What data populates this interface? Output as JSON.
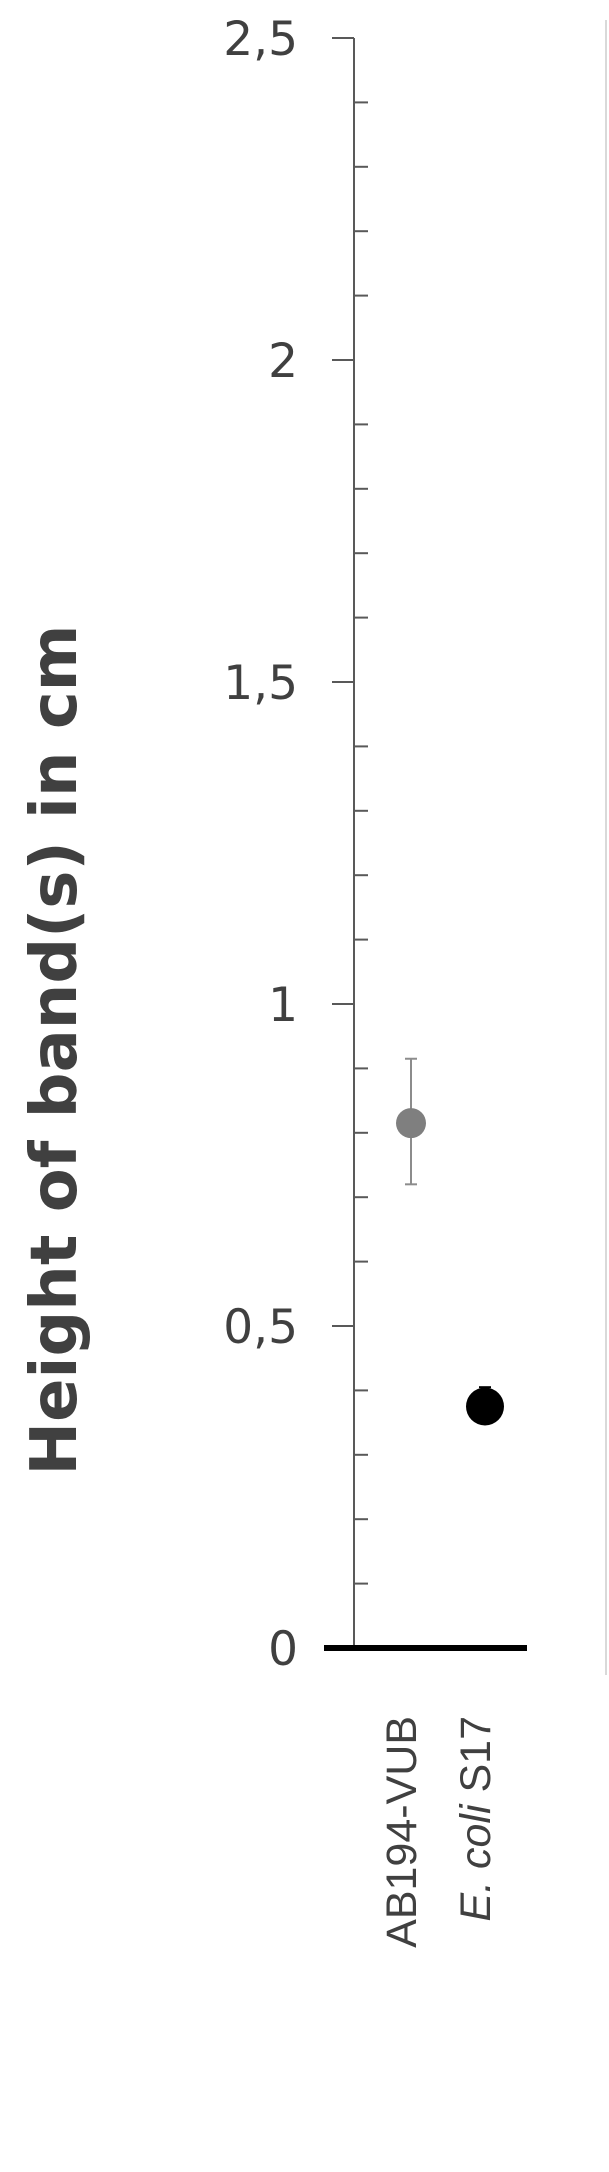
{
  "chart_data": {
    "type": "scatter",
    "ylabel": "Height of band(s) in cm",
    "ylim": [
      0,
      2.5
    ],
    "y_major_ticks": [
      0,
      0.5,
      1,
      1.5,
      2,
      2.5
    ],
    "y_tick_labels": [
      "0",
      "0,5",
      "1",
      "1,5",
      "2",
      "2,5"
    ],
    "y_minor_step": 0.1,
    "grid": false,
    "categories": [
      {
        "label": "AB194-VUB",
        "italic_part": "",
        "roman_part": "AB194-VUB"
      },
      {
        "label": "E. coli S17",
        "italic_part": "E. coli",
        "roman_part": " S17"
      }
    ],
    "points": [
      {
        "category": "AB194-VUB",
        "y": 0.815,
        "err_low": 0.72,
        "err_high": 0.915,
        "color": "#7f7f7f"
      },
      {
        "category": "E. coli S17",
        "y": 0.375,
        "err_low": 0.35,
        "err_high": 0.405,
        "color": "#000000"
      }
    ]
  }
}
